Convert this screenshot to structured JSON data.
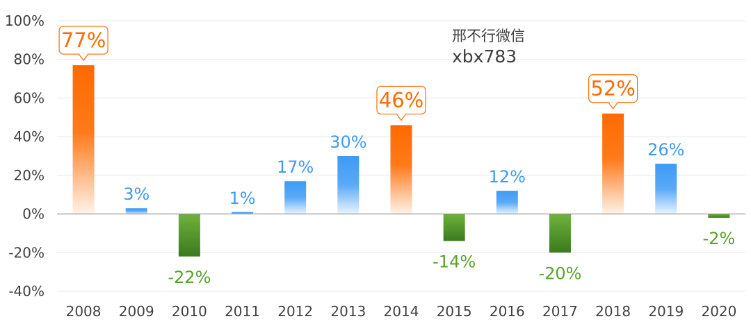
{
  "watermark": {
    "line1": "邢不行微信",
    "line2": "xbx783"
  },
  "colors": {
    "highlight": "#FF6A00",
    "positive": "#3D9BF5",
    "negative": "#5AA02C",
    "grid": "#E8E8E8",
    "axis": "#808080"
  },
  "chart_data": {
    "type": "bar",
    "categories": [
      "2008",
      "2009",
      "2010",
      "2011",
      "2012",
      "2013",
      "2014",
      "2015",
      "2016",
      "2017",
      "2018",
      "2019",
      "2020"
    ],
    "values": [
      77,
      3,
      -22,
      1,
      17,
      30,
      46,
      -14,
      12,
      -20,
      52,
      26,
      -2
    ],
    "labels": [
      "77%",
      "3%",
      "-22%",
      "1%",
      "17%",
      "30%",
      "46%",
      "-14%",
      "12%",
      "-20%",
      "52%",
      "26%",
      "-2%"
    ],
    "highlighted": [
      "2008",
      "2014",
      "2018"
    ],
    "ylim": [
      -40,
      100
    ],
    "yticks": [
      "100%",
      "80%",
      "60%",
      "40%",
      "20%",
      "0%",
      "-20%",
      "-40%"
    ],
    "grid": true,
    "legend": "none"
  }
}
